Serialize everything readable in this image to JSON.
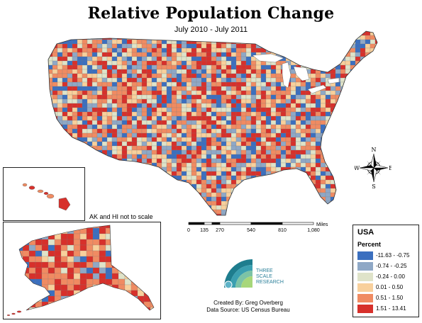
{
  "title": "Relative Population Change",
  "subtitle": "July 2010 - July 2011",
  "inset_note": "AK and HI not to scale",
  "compass": {
    "n": "N",
    "s": "S",
    "e": "E",
    "w": "W"
  },
  "scale_bar": {
    "ticks": [
      "0",
      "135",
      "270",
      "540",
      "810",
      "1,080"
    ],
    "unit": "Miles"
  },
  "legend": {
    "title": "USA",
    "subtitle": "Percent",
    "items": [
      {
        "label": "-11.63 - -0.75",
        "color": "#3b6fbf"
      },
      {
        "label": "-0.74 - -0.25",
        "color": "#8fa8c6"
      },
      {
        "label": "-0.24 - 0.00",
        "color": "#dfe3c9"
      },
      {
        "label": "0.01 - 0.50",
        "color": "#f8d09c"
      },
      {
        "label": "0.51 - 1.50",
        "color": "#f08b62"
      },
      {
        "label": "1.51 - 13.41",
        "color": "#d7302b"
      }
    ]
  },
  "logo": {
    "line1": "THREE",
    "line2": "SCALE",
    "line3": "RESEARCH"
  },
  "credits": {
    "created_by": "Created By: Greg Overberg",
    "source": "Data Source: US Census Bureau"
  }
}
